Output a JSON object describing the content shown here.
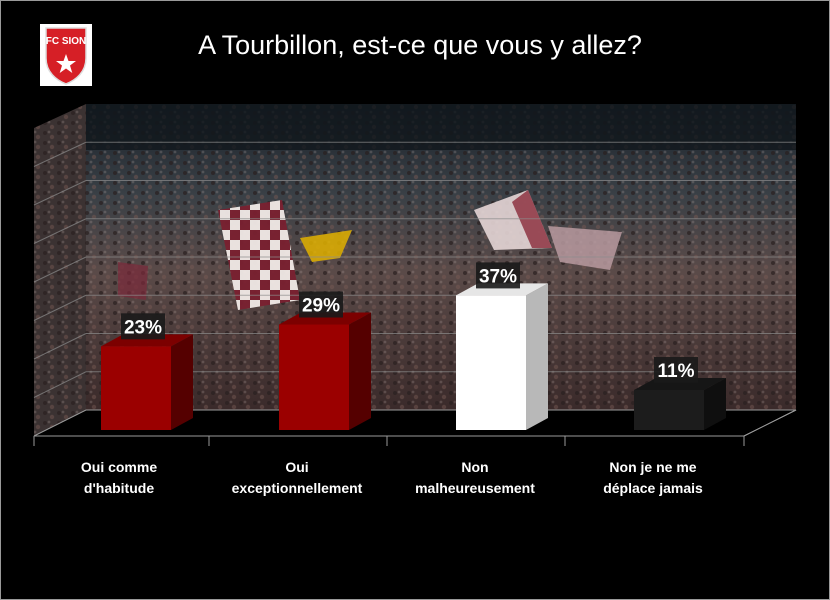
{
  "logo": {
    "text": "FC SION",
    "colors": {
      "red": "#d61f26",
      "white": "#ffffff"
    }
  },
  "chart_data": {
    "type": "bar",
    "title": "A Tourbillon, est-ce que vous y allez?",
    "categories": [
      "Oui comme d'habitude",
      "Oui exceptionnellement",
      "Non malheureusement",
      "Non je ne me déplace jamais"
    ],
    "category_labels": [
      "Oui comme\nd'habitude",
      "Oui\nexceptionnellement",
      "Non\nmalheureusement",
      "Non je ne me\ndéplace jamais"
    ],
    "values": [
      23,
      29,
      37,
      11
    ],
    "data_labels": [
      "23%",
      "29%",
      "37%",
      "11%"
    ],
    "colors": [
      "#9b0000",
      "#9b0000",
      "#ffffff",
      "#1c1c1c"
    ],
    "ylim": [
      0,
      40
    ],
    "grid": true,
    "background": "stadium crowd photo"
  }
}
